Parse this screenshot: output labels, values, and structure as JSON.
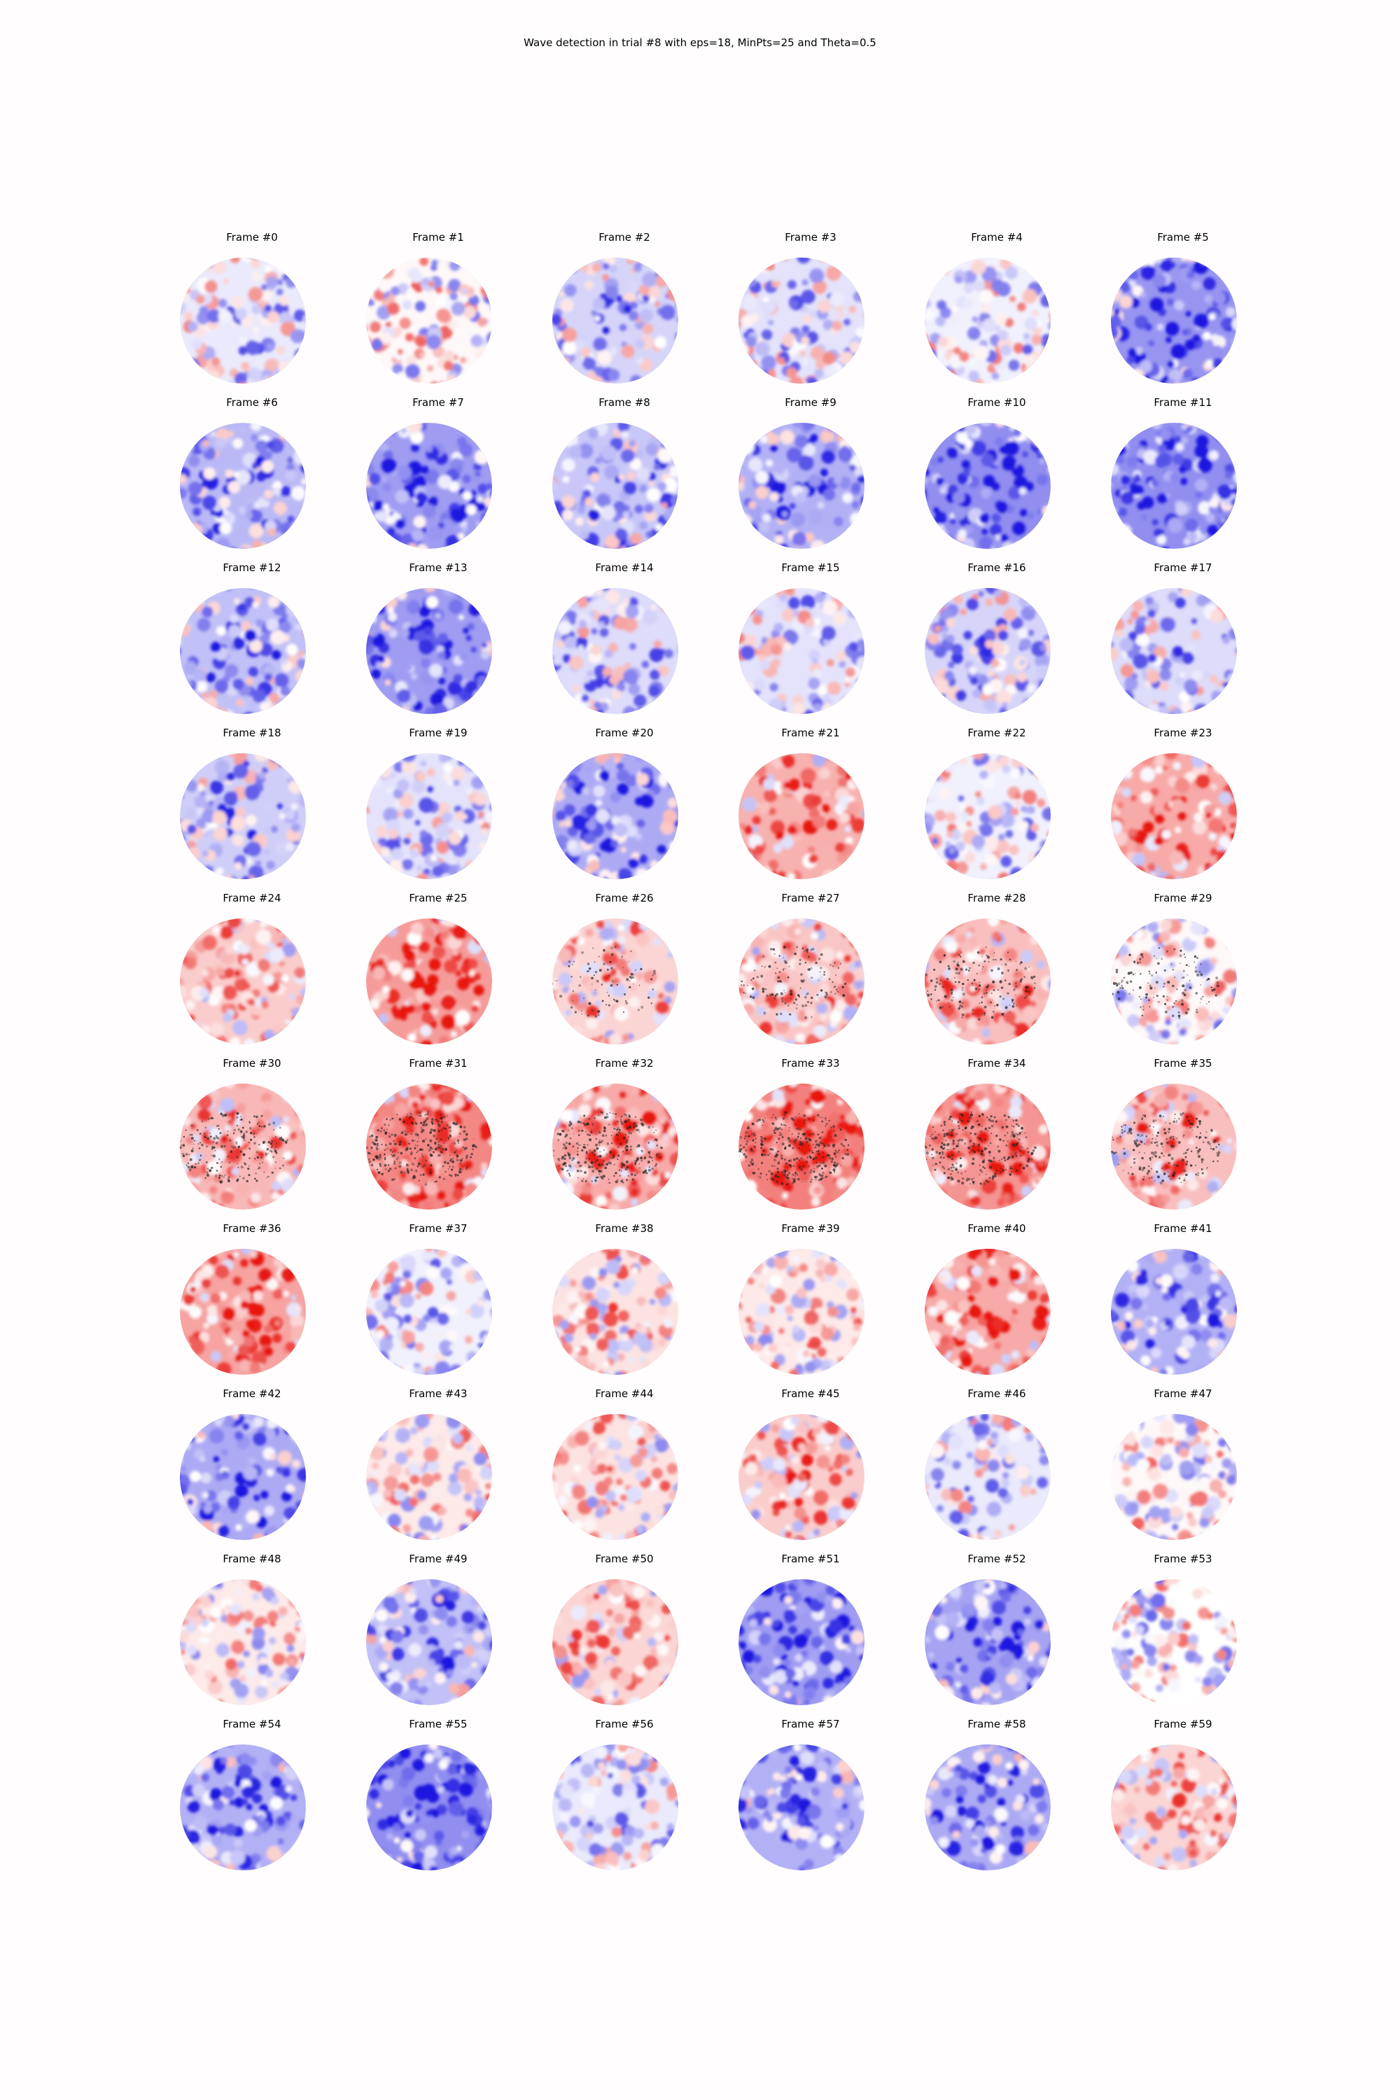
{
  "figure": {
    "title": "Wave detection in trial #8 with eps=18, MinPts=25 and Theta=0.5"
  },
  "colors": {
    "positive": "#e8130e",
    "negative": "#1a14e0",
    "detected_points": "#222222",
    "background": "#fffdfd"
  },
  "frames": [
    {
      "label": "Frame #0",
      "polarity": -0.15,
      "wave_points": 0
    },
    {
      "label": "Frame #1",
      "polarity": 0.05,
      "wave_points": 0
    },
    {
      "label": "Frame #2",
      "polarity": -0.3,
      "wave_points": 0
    },
    {
      "label": "Frame #3",
      "polarity": -0.2,
      "wave_points": 0
    },
    {
      "label": "Frame #4",
      "polarity": -0.1,
      "wave_points": 0
    },
    {
      "label": "Frame #5",
      "polarity": -0.75,
      "wave_points": 0
    },
    {
      "label": "Frame #6",
      "polarity": -0.5,
      "wave_points": 0
    },
    {
      "label": "Frame #7",
      "polarity": -0.7,
      "wave_points": 0
    },
    {
      "label": "Frame #8",
      "polarity": -0.4,
      "wave_points": 0
    },
    {
      "label": "Frame #9",
      "polarity": -0.55,
      "wave_points": 0
    },
    {
      "label": "Frame #10",
      "polarity": -0.8,
      "wave_points": 0
    },
    {
      "label": "Frame #11",
      "polarity": -0.8,
      "wave_points": 0
    },
    {
      "label": "Frame #12",
      "polarity": -0.45,
      "wave_points": 0
    },
    {
      "label": "Frame #13",
      "polarity": -0.7,
      "wave_points": 0
    },
    {
      "label": "Frame #14",
      "polarity": -0.25,
      "wave_points": 0
    },
    {
      "label": "Frame #15",
      "polarity": -0.2,
      "wave_points": 0
    },
    {
      "label": "Frame #16",
      "polarity": -0.3,
      "wave_points": 0
    },
    {
      "label": "Frame #17",
      "polarity": -0.25,
      "wave_points": 0
    },
    {
      "label": "Frame #18",
      "polarity": -0.35,
      "wave_points": 0
    },
    {
      "label": "Frame #19",
      "polarity": -0.2,
      "wave_points": 0
    },
    {
      "label": "Frame #20",
      "polarity": -0.6,
      "wave_points": 0
    },
    {
      "label": "Frame #21",
      "polarity": 0.55,
      "wave_points": 0
    },
    {
      "label": "Frame #22",
      "polarity": -0.1,
      "wave_points": 0
    },
    {
      "label": "Frame #23",
      "polarity": 0.6,
      "wave_points": 0
    },
    {
      "label": "Frame #24",
      "polarity": 0.35,
      "wave_points": 0
    },
    {
      "label": "Frame #25",
      "polarity": 0.7,
      "wave_points": 0
    },
    {
      "label": "Frame #26",
      "polarity": 0.3,
      "wave_points": 90
    },
    {
      "label": "Frame #27",
      "polarity": 0.4,
      "wave_points": 140
    },
    {
      "label": "Frame #28",
      "polarity": 0.45,
      "wave_points": 170
    },
    {
      "label": "Frame #29",
      "polarity": 0.05,
      "wave_points": 140
    },
    {
      "label": "Frame #30",
      "polarity": 0.5,
      "wave_points": 230
    },
    {
      "label": "Frame #31",
      "polarity": 0.85,
      "wave_points": 320
    },
    {
      "label": "Frame #32",
      "polarity": 0.6,
      "wave_points": 320
    },
    {
      "label": "Frame #33",
      "polarity": 0.9,
      "wave_points": 330
    },
    {
      "label": "Frame #34",
      "polarity": 0.75,
      "wave_points": 300
    },
    {
      "label": "Frame #35",
      "polarity": 0.45,
      "wave_points": 220
    },
    {
      "label": "Frame #36",
      "polarity": 0.65,
      "wave_points": 0
    },
    {
      "label": "Frame #37",
      "polarity": -0.1,
      "wave_points": 0
    },
    {
      "label": "Frame #38",
      "polarity": 0.2,
      "wave_points": 0
    },
    {
      "label": "Frame #39",
      "polarity": 0.15,
      "wave_points": 0
    },
    {
      "label": "Frame #40",
      "polarity": 0.6,
      "wave_points": 0
    },
    {
      "label": "Frame #41",
      "polarity": -0.55,
      "wave_points": 0
    },
    {
      "label": "Frame #42",
      "polarity": -0.6,
      "wave_points": 0
    },
    {
      "label": "Frame #43",
      "polarity": 0.15,
      "wave_points": 0
    },
    {
      "label": "Frame #44",
      "polarity": 0.2,
      "wave_points": 0
    },
    {
      "label": "Frame #45",
      "polarity": 0.35,
      "wave_points": 0
    },
    {
      "label": "Frame #46",
      "polarity": -0.15,
      "wave_points": 0
    },
    {
      "label": "Frame #47",
      "polarity": 0.05,
      "wave_points": 0
    },
    {
      "label": "Frame #48",
      "polarity": 0.15,
      "wave_points": 0
    },
    {
      "label": "Frame #49",
      "polarity": -0.45,
      "wave_points": 0
    },
    {
      "label": "Frame #50",
      "polarity": 0.3,
      "wave_points": 0
    },
    {
      "label": "Frame #51",
      "polarity": -0.7,
      "wave_points": 0
    },
    {
      "label": "Frame #52",
      "polarity": -0.65,
      "wave_points": 0
    },
    {
      "label": "Frame #53",
      "polarity": 0.0,
      "wave_points": 0
    },
    {
      "label": "Frame #54",
      "polarity": -0.55,
      "wave_points": 0
    },
    {
      "label": "Frame #55",
      "polarity": -0.8,
      "wave_points": 0
    },
    {
      "label": "Frame #56",
      "polarity": -0.15,
      "wave_points": 0
    },
    {
      "label": "Frame #57",
      "polarity": -0.55,
      "wave_points": 0
    },
    {
      "label": "Frame #58",
      "polarity": -0.6,
      "wave_points": 0
    },
    {
      "label": "Frame #59",
      "polarity": 0.3,
      "wave_points": 0
    }
  ]
}
